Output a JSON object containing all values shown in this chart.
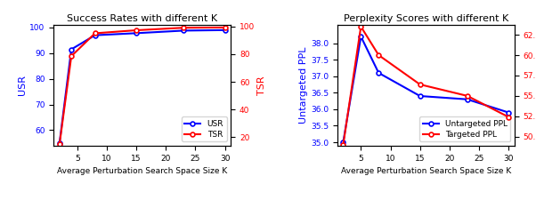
{
  "left": {
    "title": "Success Rates with different K",
    "x": [
      2,
      4,
      8,
      15,
      23,
      30
    ],
    "usr": [
      55.0,
      91.5,
      97.0,
      97.8,
      98.8,
      99.0
    ],
    "tsr": [
      15.0,
      78.5,
      95.0,
      97.2,
      99.0,
      99.2
    ],
    "ylabel_left": "USR",
    "ylabel_right": "TSR",
    "xlabel": "Average Perturbation Search Space Size K",
    "ylim_left": [
      54,
      101
    ],
    "ylim_right": [
      14,
      101
    ],
    "yticks_left": [
      60,
      70,
      80,
      90,
      100
    ],
    "yticks_right": [
      20,
      40,
      60,
      80,
      100
    ],
    "xticks": [
      5,
      10,
      15,
      20,
      25,
      30
    ],
    "legend_labels": [
      "USR",
      "TSR"
    ],
    "blue": "#0000ff",
    "red": "#ff0000"
  },
  "right": {
    "title": "Perplexity Scores with different K",
    "x": [
      2,
      5,
      8,
      15,
      23,
      30
    ],
    "untargeted": [
      35.0,
      38.2,
      37.1,
      36.4,
      36.3,
      35.9
    ],
    "targeted": [
      49.0,
      63.5,
      60.0,
      56.4,
      55.0,
      52.4
    ],
    "ylabel_left": "Untargeted PPL",
    "ylabel_right": "Targeted PPL",
    "xlabel": "Average Perturbation Search Space Size K",
    "ylim_left": [
      34.9,
      38.55
    ],
    "ylim_right": [
      48.9,
      63.7
    ],
    "yticks_left": [
      35.0,
      35.5,
      36.0,
      36.5,
      37.0,
      37.5,
      38.0
    ],
    "yticks_right": [
      50.0,
      52.5,
      55.0,
      57.5,
      60.0,
      62.5
    ],
    "xticks": [
      5,
      10,
      15,
      20,
      25,
      30
    ],
    "legend_labels": [
      "Untargeted PPL",
      "Targeted PPL"
    ],
    "blue": "#0000ff",
    "red": "#ff0000"
  },
  "fig_bgcolor": "#ffffff",
  "figsize": [
    6.02,
    2.34
  ],
  "dpi": 100
}
